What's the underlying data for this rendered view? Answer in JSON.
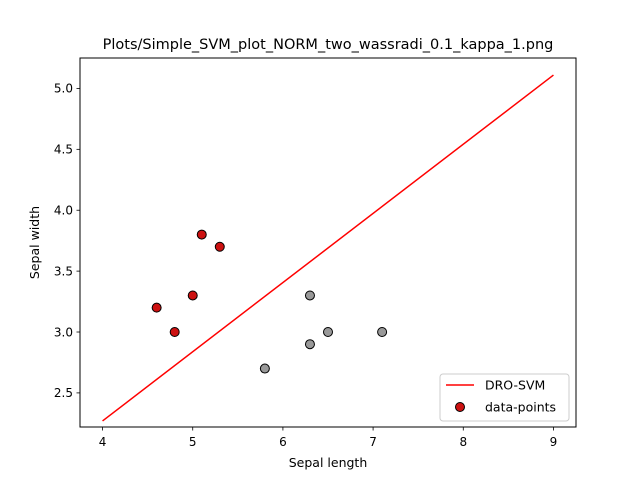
{
  "chart_data": {
    "type": "scatter",
    "title": "Plots/Simple_SVM_plot_NORM_two_wassradi_0.1_kappa_1.png",
    "xlabel": "Sepal length",
    "ylabel": "Sepal width",
    "xlim": [
      3.75,
      9.25
    ],
    "ylim": [
      2.22,
      5.25
    ],
    "xticks": [
      4,
      5,
      6,
      7,
      8,
      9
    ],
    "xtick_labels": [
      "4",
      "5",
      "6",
      "7",
      "8",
      "9"
    ],
    "yticks": [
      2.5,
      3.0,
      3.5,
      4.0,
      4.5,
      5.0
    ],
    "ytick_labels": [
      "2.5",
      "3.0",
      "3.5",
      "4.0",
      "4.5",
      "5.0"
    ],
    "grid": false,
    "legend": {
      "placement": "bottom-right",
      "entries": [
        {
          "label": "DRO-SVM",
          "kind": "line",
          "color": "#ff0000"
        },
        {
          "label": "data-points",
          "kind": "marker",
          "color": "#cc1111"
        }
      ]
    },
    "series": [
      {
        "name": "DRO-SVM",
        "kind": "line",
        "color": "#ff0000",
        "points": [
          [
            4.0,
            2.27
          ],
          [
            9.0,
            5.11
          ]
        ]
      },
      {
        "name": "data-points",
        "kind": "scatter",
        "edge_color": "#000000",
        "points": [
          {
            "x": 4.6,
            "y": 3.2,
            "color": "#cc1111"
          },
          {
            "x": 4.8,
            "y": 3.0,
            "color": "#cc1111"
          },
          {
            "x": 5.0,
            "y": 3.3,
            "color": "#cc1111"
          },
          {
            "x": 5.1,
            "y": 3.8,
            "color": "#cc1111"
          },
          {
            "x": 5.3,
            "y": 3.7,
            "color": "#cc1111"
          },
          {
            "x": 5.8,
            "y": 2.7,
            "color": "#999999"
          },
          {
            "x": 6.3,
            "y": 3.3,
            "color": "#999999"
          },
          {
            "x": 6.3,
            "y": 2.9,
            "color": "#999999"
          },
          {
            "x": 6.5,
            "y": 3.0,
            "color": "#999999"
          },
          {
            "x": 7.1,
            "y": 3.0,
            "color": "#999999"
          }
        ]
      }
    ]
  }
}
